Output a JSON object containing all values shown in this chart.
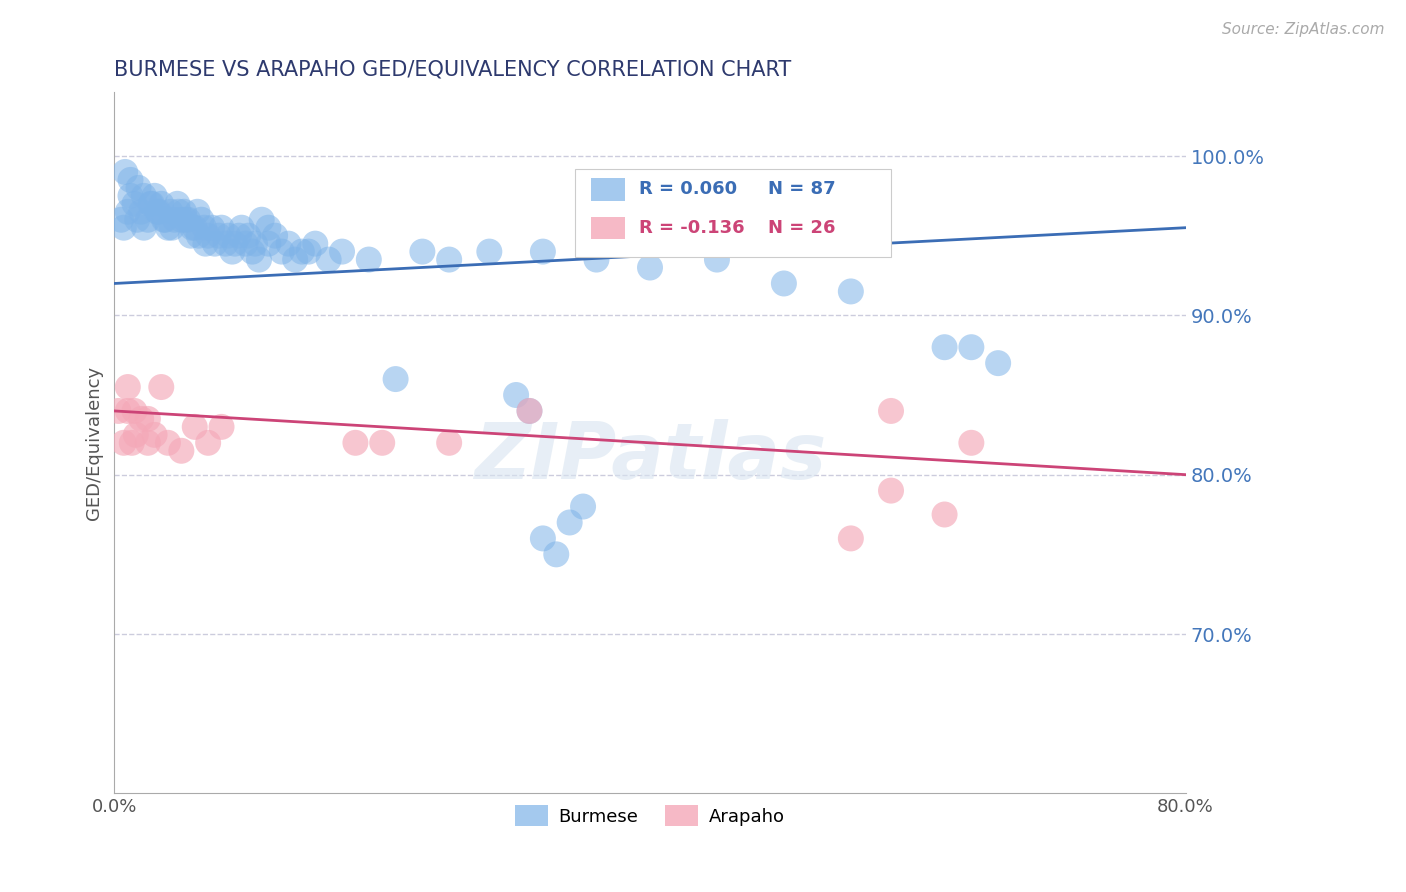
{
  "title": "BURMESE VS ARAPAHO GED/EQUIVALENCY CORRELATION CHART",
  "source_text": "Source: ZipAtlas.com",
  "ylabel": "GED/Equivalency",
  "xlim": [
    0.0,
    0.8
  ],
  "ylim": [
    0.6,
    1.04
  ],
  "yticks": [
    0.7,
    0.8,
    0.9,
    1.0
  ],
  "yticklabels": [
    "70.0%",
    "80.0%",
    "90.0%",
    "100.0%"
  ],
  "burmese_color": "#7EB3E8",
  "arapaho_color": "#F4A8B8",
  "burmese_line_color": "#3B6DB5",
  "arapaho_line_color": "#CC4477",
  "burmese_R": 0.06,
  "burmese_N": 87,
  "arapaho_R": -0.136,
  "arapaho_N": 26,
  "title_color": "#2E3A6E",
  "tick_color": "#4477BB",
  "watermark": "ZIPatlas",
  "grid_color": "#CCCCDD",
  "burmese_x": [
    0.005,
    0.007,
    0.01,
    0.012,
    0.015,
    0.017,
    0.02,
    0.022,
    0.025,
    0.027,
    0.03,
    0.032,
    0.035,
    0.037,
    0.04,
    0.042,
    0.045,
    0.047,
    0.05,
    0.052,
    0.055,
    0.057,
    0.06,
    0.062,
    0.065,
    0.067,
    0.07,
    0.075,
    0.08,
    0.085,
    0.09,
    0.095,
    0.1,
    0.105,
    0.11,
    0.115,
    0.12,
    0.13,
    0.14,
    0.15,
    0.008,
    0.012,
    0.018,
    0.022,
    0.028,
    0.033,
    0.038,
    0.043,
    0.048,
    0.053,
    0.058,
    0.063,
    0.068,
    0.073,
    0.078,
    0.083,
    0.088,
    0.093,
    0.098,
    0.103,
    0.108,
    0.115,
    0.125,
    0.135,
    0.145,
    0.16,
    0.17,
    0.19,
    0.21,
    0.23,
    0.25,
    0.28,
    0.32,
    0.36,
    0.4,
    0.45,
    0.3,
    0.31,
    0.32,
    0.33,
    0.34,
    0.35,
    0.5,
    0.55,
    0.62,
    0.64,
    0.66
  ],
  "burmese_y": [
    0.96,
    0.955,
    0.965,
    0.975,
    0.97,
    0.96,
    0.965,
    0.955,
    0.96,
    0.97,
    0.975,
    0.965,
    0.97,
    0.96,
    0.955,
    0.965,
    0.96,
    0.97,
    0.96,
    0.965,
    0.96,
    0.95,
    0.955,
    0.965,
    0.96,
    0.955,
    0.95,
    0.945,
    0.955,
    0.95,
    0.945,
    0.955,
    0.95,
    0.945,
    0.96,
    0.955,
    0.95,
    0.945,
    0.94,
    0.945,
    0.99,
    0.985,
    0.98,
    0.975,
    0.97,
    0.965,
    0.96,
    0.955,
    0.965,
    0.96,
    0.955,
    0.95,
    0.945,
    0.955,
    0.95,
    0.945,
    0.94,
    0.95,
    0.945,
    0.94,
    0.935,
    0.945,
    0.94,
    0.935,
    0.94,
    0.935,
    0.94,
    0.935,
    0.86,
    0.94,
    0.935,
    0.94,
    0.94,
    0.935,
    0.93,
    0.935,
    0.85,
    0.84,
    0.76,
    0.75,
    0.77,
    0.78,
    0.92,
    0.915,
    0.88,
    0.88,
    0.87
  ],
  "arapaho_x": [
    0.003,
    0.007,
    0.01,
    0.013,
    0.016,
    0.02,
    0.025,
    0.03,
    0.04,
    0.05,
    0.06,
    0.07,
    0.08,
    0.01,
    0.015,
    0.025,
    0.035,
    0.18,
    0.2,
    0.25,
    0.31,
    0.58,
    0.64,
    0.55,
    0.58,
    0.62
  ],
  "arapaho_y": [
    0.84,
    0.82,
    0.84,
    0.82,
    0.825,
    0.835,
    0.82,
    0.825,
    0.82,
    0.815,
    0.83,
    0.82,
    0.83,
    0.855,
    0.84,
    0.835,
    0.855,
    0.82,
    0.82,
    0.82,
    0.84,
    0.84,
    0.82,
    0.76,
    0.79,
    0.775
  ]
}
